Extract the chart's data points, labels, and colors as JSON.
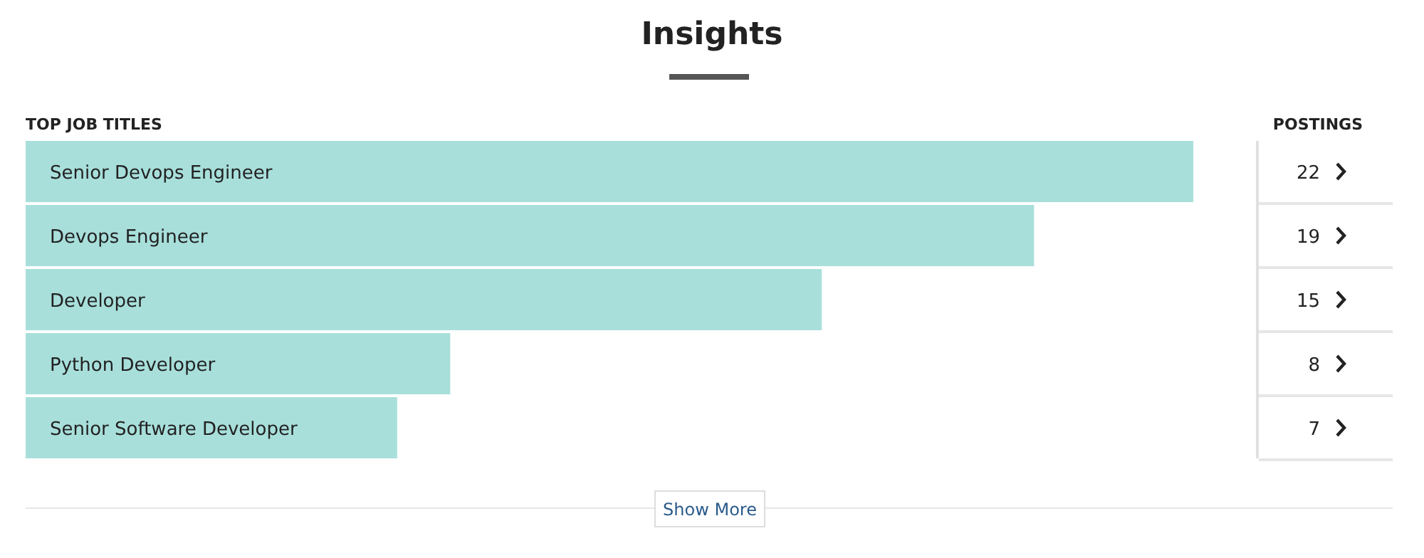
{
  "chart_data": {
    "type": "bar",
    "orientation": "horizontal",
    "title": "Insights",
    "ylabel": "TOP JOB TITLES",
    "categories": [
      "Senior Devops Engineer",
      "Devops Engineer",
      "Developer",
      "Python Developer",
      "Senior Software Developer"
    ],
    "values": [
      22,
      19,
      15,
      8,
      7
    ],
    "color": "#a8dfdb",
    "data_labels": true,
    "annotations": [
      "POSTINGS",
      "Show More"
    ]
  }
}
